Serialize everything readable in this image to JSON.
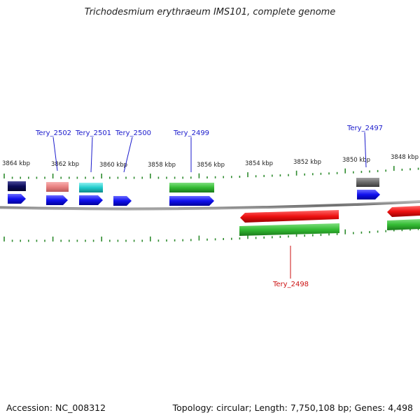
{
  "title": "Trichodesmium erythraeum IMS101, complete genome",
  "footer": {
    "accession": "Accession: NC_008312",
    "summary": "Topology: circular; Length: 7,750,108 bp; Genes: 4,498"
  },
  "colors": {
    "backbone": "#8a8a8a",
    "tick": "#2e8b2e",
    "label_forward": "#1a1acc",
    "label_reverse": "#cc1111",
    "cds_forward": "#1010ee",
    "cds_reverse": "#ee1111",
    "gene_green": "#33bb33"
  },
  "scale_labels": [
    "3864 kbp",
    "3862 kbp",
    "3860 kbp",
    "3858 kbp",
    "3856 kbp",
    "3854 kbp",
    "3852 kbp",
    "3850 kbp",
    "3848 kbp"
  ],
  "gene_labels": [
    {
      "name": "Tery_2502",
      "strand": "forward"
    },
    {
      "name": "Tery_2501",
      "strand": "forward"
    },
    {
      "name": "Tery_2500",
      "strand": "forward"
    },
    {
      "name": "Tery_2499",
      "strand": "forward"
    },
    {
      "name": "Tery_2497",
      "strand": "forward"
    },
    {
      "name": "Tery_2498",
      "strand": "reverse"
    }
  ]
}
